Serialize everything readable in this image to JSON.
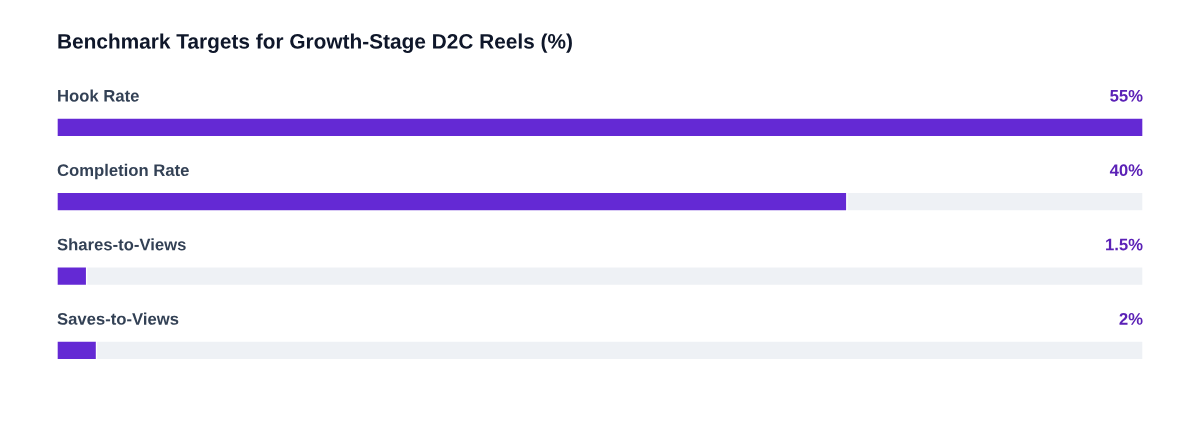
{
  "chart_data": {
    "type": "bar",
    "orientation": "horizontal",
    "title": "Benchmark Targets for Growth-Stage D2C Reels (%)",
    "categories": [
      "Hook Rate",
      "Completion Rate",
      "Shares-to-Views",
      "Saves-to-Views"
    ],
    "values": [
      55,
      40,
      1.5,
      2
    ],
    "value_labels": [
      "55%",
      "40%",
      "1.5%",
      "2%"
    ],
    "color": "#6429d4",
    "xlim": [
      0,
      55
    ]
  }
}
